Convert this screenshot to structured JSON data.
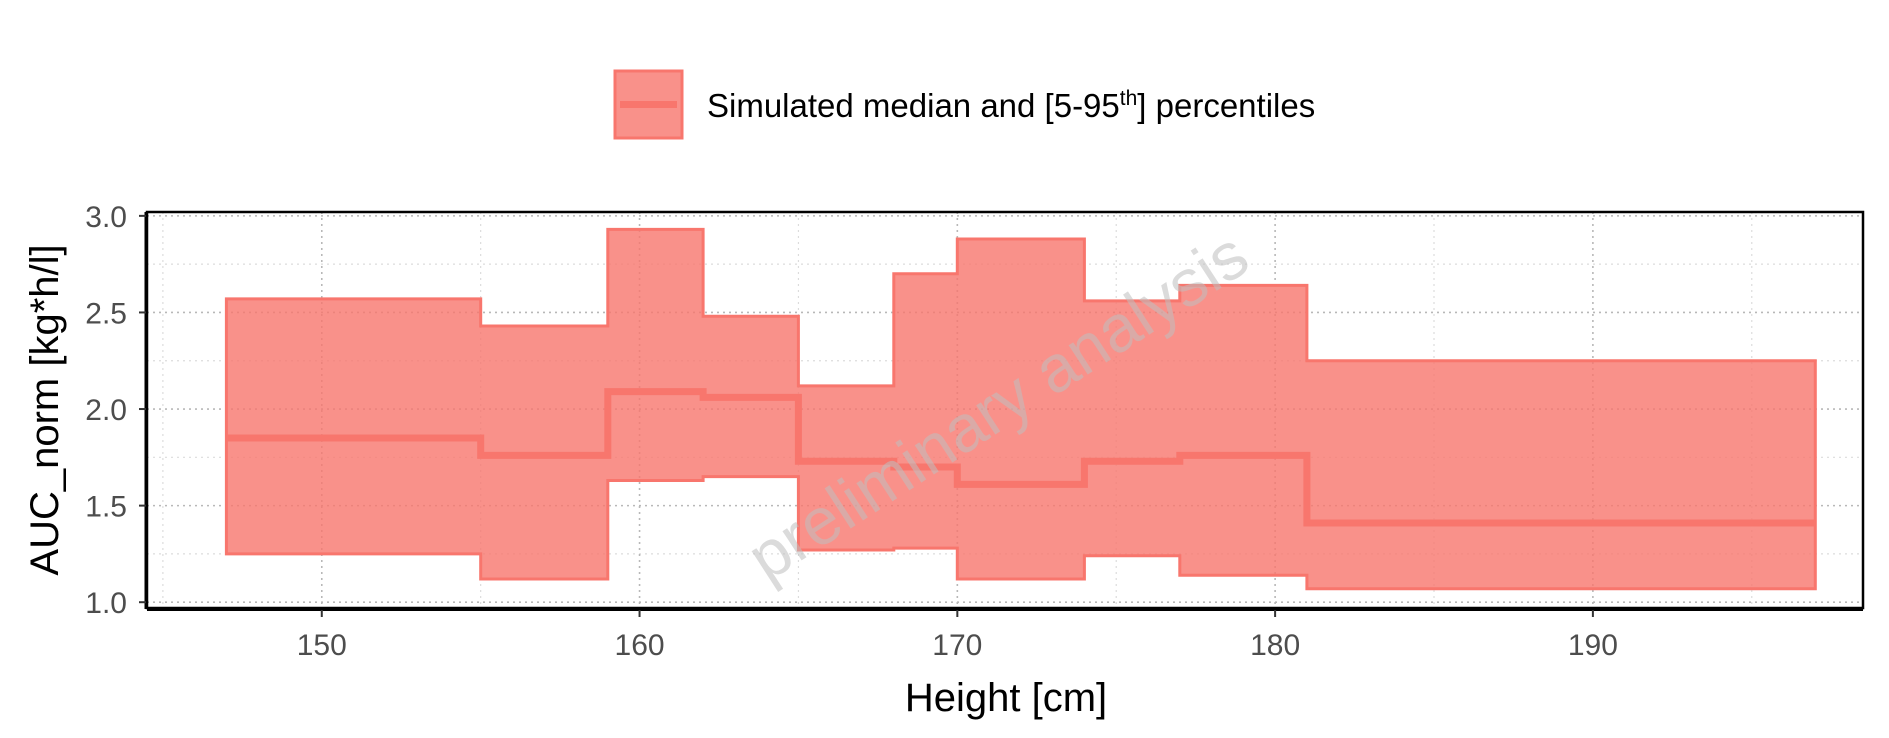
{
  "chart_data": {
    "type": "area",
    "xlabel": "Height [cm]",
    "ylabel": "AUC_norm [kg*h/l]",
    "xlim": [
      144.5,
      198.5
    ],
    "ylim": [
      0.97,
      3.02
    ],
    "xticks": [
      150,
      160,
      170,
      180,
      190
    ],
    "xtick_labels": [
      "150",
      "160",
      "170",
      "180",
      "190"
    ],
    "yticks": [
      1.0,
      1.5,
      2.0,
      2.5,
      3.0
    ],
    "ytick_labels": [
      "1.0",
      "1.5",
      "2.0",
      "2.5",
      "3.0"
    ],
    "grid": true,
    "legend": {
      "position": "top",
      "label_prefix": "Simulated median and [5-95",
      "label_sup": "th",
      "label_suffix": "] percentiles"
    },
    "watermark": "preliminary analysis",
    "color": "#F8766D",
    "x_edges": [
      147,
      155,
      159,
      162,
      165,
      168,
      170,
      174,
      177,
      181,
      197
    ],
    "series": [
      {
        "name": "median",
        "values": [
          1.85,
          1.76,
          2.09,
          2.06,
          1.73,
          1.7,
          1.61,
          1.73,
          1.76,
          1.41
        ]
      },
      {
        "name": "5th percentile",
        "values": [
          1.25,
          1.12,
          1.63,
          1.65,
          1.27,
          1.28,
          1.12,
          1.24,
          1.14,
          1.07
        ]
      },
      {
        "name": "95th percentile",
        "values": [
          2.57,
          2.43,
          2.93,
          2.48,
          2.12,
          2.7,
          2.88,
          2.56,
          2.64,
          2.25
        ]
      }
    ]
  }
}
